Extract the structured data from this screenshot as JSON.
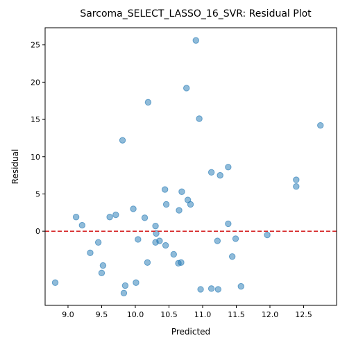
{
  "chart_data": {
    "type": "scatter",
    "title": "Sarcoma_SELECT_LASSO_16_SVR: Residual Plot",
    "xlabel": "Predicted",
    "ylabel": "Residual",
    "xlim": [
      8.66,
      12.99
    ],
    "ylim": [
      -9.95,
      27.3
    ],
    "x_ticks": [
      "9.0",
      "9.5",
      "10.0",
      "10.5",
      "11.0",
      "11.5",
      "12.0",
      "12.5"
    ],
    "y_ticks": [
      "0",
      "5",
      "10",
      "15",
      "20",
      "25"
    ],
    "grid": false,
    "legend": "none",
    "point_color": "#1f77b4",
    "reference_line": {
      "y": 0,
      "color": "#d62728",
      "style": "dashed"
    },
    "points": [
      {
        "x": 8.81,
        "y": -6.9
      },
      {
        "x": 9.12,
        "y": 1.9
      },
      {
        "x": 9.21,
        "y": 0.8
      },
      {
        "x": 9.33,
        "y": -2.9
      },
      {
        "x": 9.45,
        "y": -1.5
      },
      {
        "x": 9.5,
        "y": -5.6
      },
      {
        "x": 9.52,
        "y": -4.6
      },
      {
        "x": 9.62,
        "y": 1.9
      },
      {
        "x": 9.71,
        "y": 2.2
      },
      {
        "x": 9.81,
        "y": 12.2
      },
      {
        "x": 9.83,
        "y": -8.3
      },
      {
        "x": 9.85,
        "y": -7.3
      },
      {
        "x": 9.97,
        "y": 3.0
      },
      {
        "x": 10.01,
        "y": -6.9
      },
      {
        "x": 10.04,
        "y": -1.1
      },
      {
        "x": 10.14,
        "y": 1.8
      },
      {
        "x": 10.18,
        "y": -4.2
      },
      {
        "x": 10.19,
        "y": 17.3
      },
      {
        "x": 10.3,
        "y": 0.7
      },
      {
        "x": 10.31,
        "y": -0.3
      },
      {
        "x": 10.3,
        "y": -1.5
      },
      {
        "x": 10.36,
        "y": -1.3
      },
      {
        "x": 10.44,
        "y": 5.6
      },
      {
        "x": 10.45,
        "y": -1.9
      },
      {
        "x": 10.46,
        "y": 3.6
      },
      {
        "x": 10.57,
        "y": -3.1
      },
      {
        "x": 10.64,
        "y": -4.3
      },
      {
        "x": 10.65,
        "y": 2.8
      },
      {
        "x": 10.68,
        "y": -4.2
      },
      {
        "x": 10.69,
        "y": 5.3
      },
      {
        "x": 10.76,
        "y": 19.2
      },
      {
        "x": 10.78,
        "y": 4.2
      },
      {
        "x": 10.82,
        "y": 3.6
      },
      {
        "x": 10.9,
        "y": 25.6
      },
      {
        "x": 10.95,
        "y": 15.1
      },
      {
        "x": 10.97,
        "y": -7.8
      },
      {
        "x": 11.13,
        "y": 7.9
      },
      {
        "x": 11.13,
        "y": -7.7
      },
      {
        "x": 11.22,
        "y": -1.3
      },
      {
        "x": 11.23,
        "y": -7.8
      },
      {
        "x": 11.26,
        "y": 7.5
      },
      {
        "x": 11.38,
        "y": 8.6
      },
      {
        "x": 11.38,
        "y": 1.0
      },
      {
        "x": 11.44,
        "y": -3.4
      },
      {
        "x": 11.49,
        "y": -1.0
      },
      {
        "x": 11.57,
        "y": -7.4
      },
      {
        "x": 11.96,
        "y": -0.5
      },
      {
        "x": 12.39,
        "y": 6.9
      },
      {
        "x": 12.39,
        "y": 6.0
      },
      {
        "x": 12.75,
        "y": 14.2
      }
    ]
  }
}
